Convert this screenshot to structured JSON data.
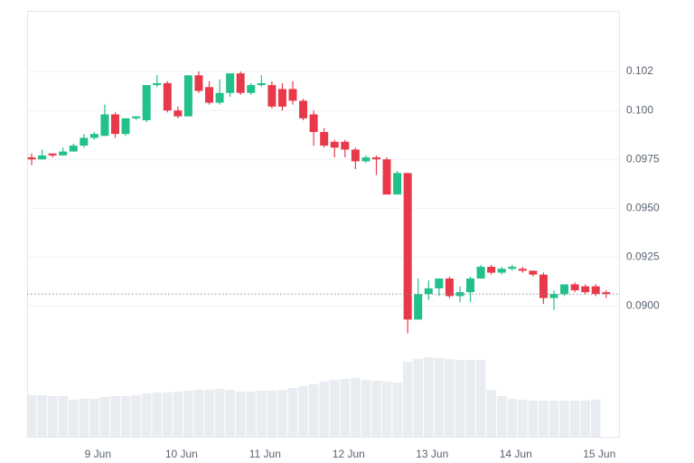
{
  "chart_data": {
    "type": "candlestick",
    "categories": [
      null,
      null,
      null,
      null,
      null,
      null,
      "9 Jun",
      null,
      null,
      null,
      null,
      null,
      null,
      null,
      "10 Jun",
      null,
      null,
      null,
      null,
      null,
      null,
      null,
      "11 Jun",
      null,
      null,
      null,
      null,
      null,
      null,
      null,
      "12 Jun",
      null,
      null,
      null,
      null,
      null,
      null,
      null,
      "13 Jun",
      null,
      null,
      null,
      null,
      null,
      null,
      null,
      "14 Jun",
      null,
      null,
      null,
      null,
      null,
      null,
      null,
      "15 Jun",
      null
    ],
    "open": [
      0.0976,
      0.0975,
      0.0978,
      0.0977,
      0.0979,
      0.0982,
      0.0986,
      0.0987,
      0.0998,
      0.0988,
      0.0996,
      0.0995,
      0.1013,
      0.1014,
      0.1,
      0.0997,
      0.1018,
      0.1012,
      0.1004,
      0.1009,
      0.1019,
      0.1009,
      0.1013,
      0.1013,
      0.1011,
      0.1011,
      0.1005,
      0.0998,
      0.0989,
      0.0984,
      0.0984,
      0.098,
      0.0974,
      0.0976,
      0.0975,
      0.0957,
      0.0968,
      0.0893,
      0.0906,
      0.0909,
      0.0914,
      0.0905,
      0.0907,
      0.0914,
      0.092,
      0.0917,
      0.0919,
      0.0919,
      0.0918,
      0.0916,
      0.0904,
      0.0906,
      0.0911,
      0.091,
      0.091,
      0.0907
    ],
    "high": [
      0.0978,
      0.098,
      0.0978,
      0.0981,
      0.0983,
      0.0988,
      0.0989,
      0.1003,
      0.0999,
      0.0996,
      0.0997,
      0.1013,
      0.1018,
      0.1015,
      0.1002,
      0.1018,
      0.102,
      0.1015,
      0.1016,
      0.1019,
      0.102,
      0.1014,
      0.1018,
      0.1015,
      0.1014,
      0.1015,
      0.1006,
      0.1,
      0.0991,
      0.0985,
      0.0985,
      0.0981,
      0.0977,
      0.0977,
      0.0976,
      0.0969,
      0.0968,
      0.0914,
      0.0913,
      0.0914,
      0.0915,
      0.091,
      0.0915,
      0.0921,
      0.0921,
      0.092,
      0.0921,
      0.092,
      0.0918,
      0.0917,
      0.0908,
      0.0911,
      0.0912,
      0.0911,
      0.0911,
      0.0908
    ],
    "low": [
      0.0972,
      0.0975,
      0.0976,
      0.0977,
      0.0979,
      0.0981,
      0.0985,
      0.0987,
      0.0986,
      0.0987,
      0.0995,
      0.0994,
      0.1012,
      0.0999,
      0.0996,
      0.0997,
      0.1009,
      0.1003,
      0.1003,
      0.1007,
      0.1008,
      0.1008,
      0.1012,
      0.1001,
      0.1,
      0.1003,
      0.0995,
      0.0982,
      0.0981,
      0.0976,
      0.0976,
      0.097,
      0.0973,
      0.0967,
      0.0957,
      0.0957,
      0.0886,
      0.0893,
      0.0903,
      0.0905,
      0.0904,
      0.0902,
      0.0902,
      0.0914,
      0.0916,
      0.0916,
      0.0918,
      0.0917,
      0.0915,
      0.0901,
      0.0898,
      0.0905,
      0.0907,
      0.0906,
      0.0905,
      0.0904
    ],
    "close": [
      0.0975,
      0.0977,
      0.0977,
      0.0979,
      0.0982,
      0.0986,
      0.0988,
      0.0998,
      0.0988,
      0.0996,
      0.0997,
      0.1013,
      0.1014,
      0.1,
      0.0997,
      0.1018,
      0.101,
      0.1004,
      0.1009,
      0.1019,
      0.1009,
      0.1013,
      0.1014,
      0.1002,
      0.1002,
      0.1005,
      0.0996,
      0.0989,
      0.0982,
      0.0981,
      0.098,
      0.0974,
      0.0976,
      0.0975,
      0.0957,
      0.0968,
      0.0893,
      0.0906,
      0.0909,
      0.0914,
      0.0905,
      0.0907,
      0.0914,
      0.092,
      0.0917,
      0.0919,
      0.092,
      0.0918,
      0.0916,
      0.0904,
      0.0906,
      0.0911,
      0.0908,
      0.0907,
      0.0906,
      0.0906
    ],
    "volume": [
      46,
      46,
      45,
      45,
      41,
      42,
      42,
      44,
      45,
      45,
      46,
      48,
      49,
      49,
      50,
      51,
      52,
      52,
      53,
      52,
      50,
      50,
      51,
      51,
      52,
      54,
      56,
      58,
      61,
      63,
      64,
      65,
      63,
      62,
      61,
      60,
      83,
      86,
      88,
      87,
      86,
      85,
      85,
      85,
      52,
      45,
      42,
      41,
      40,
      40,
      40,
      40,
      40,
      40,
      41,
      null
    ],
    "up_color": "#22c08a",
    "down_color": "#e8394a",
    "volume_color": "#e9ecf0",
    "ylim": [
      0.0833,
      0.1051
    ],
    "yticks": [
      {
        "value": 0.09,
        "label": "0.0900"
      },
      0.0925,
      {
        "value": 0.095,
        "label": "0.0950"
      },
      0.0975,
      {
        "value": 0.1,
        "label": "0.100"
      },
      0.102
    ],
    "grid": true
  }
}
